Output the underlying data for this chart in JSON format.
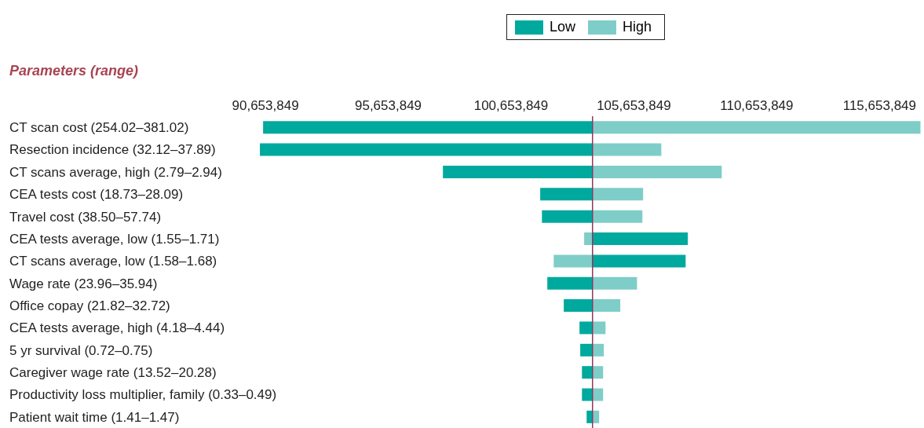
{
  "chart_data": {
    "type": "bar",
    "orientation": "horizontal",
    "ylabel": "Parameters (range)",
    "legend": "top",
    "categories": [
      "CT scan cost (254.02–381.02)",
      "Resection incidence (32.12–37.89)",
      "CT scans average, high (2.79–2.94)",
      "CEA tests cost (18.73–28.09)",
      "Travel cost (38.50–57.74)",
      "CEA tests average, low (1.55–1.71)",
      "CT scans average, low (1.58–1.68)",
      "Wage rate (23.96–35.94)",
      "Office copay (21.82–32.72)",
      "CEA tests average, high (4.18–4.44)",
      "5 yr survival (0.72–0.75)",
      "Caregiver wage rate (13.52–20.28)",
      "Productivity loss multiplier, family (0.33–0.49)",
      "Patient wait time (1.41–1.47)"
    ],
    "series": [
      {
        "name": "Low",
        "color": "#00a99d",
        "base": [
          103970000,
          103970000,
          103970000,
          103970000,
          103970000,
          103970000,
          103970000,
          103970000,
          103970000,
          103970000,
          103970000,
          103970000,
          103970000,
          103970000
        ],
        "values": [
          -13410000,
          -13540000,
          -6090000,
          -2130000,
          -2060000,
          3880000,
          3790000,
          -1840000,
          -1170000,
          -530000,
          -500000,
          -430000,
          -430000,
          -240000
        ]
      },
      {
        "name": "High",
        "color": "#7ecdc8",
        "base": [
          103970000,
          103970000,
          103970000,
          103970000,
          103970000,
          103970000,
          103970000,
          103970000,
          103970000,
          103970000,
          103970000,
          103970000,
          103970000,
          103970000
        ],
        "values": [
          13350000,
          2800000,
          5260000,
          2060000,
          2030000,
          -340000,
          -1580000,
          1810000,
          1130000,
          530000,
          460000,
          430000,
          430000,
          270000
        ]
      }
    ],
    "xlim": [
      90300000,
      117400000
    ],
    "xticks": [
      {
        "value": 90653849,
        "label": "90,653,849"
      },
      {
        "value": 95653849,
        "label": "95,653,849"
      },
      {
        "value": 100653849,
        "label": "100,653,849"
      },
      {
        "value": 105653849,
        "label": "105,653,849"
      },
      {
        "value": 110653849,
        "label": "110,653,849"
      },
      {
        "value": 115653849,
        "label": "115,653,849"
      }
    ],
    "ref_lines": [
      {
        "axis": "x",
        "value": 103970000,
        "color": "#8b3a5e"
      }
    ]
  }
}
